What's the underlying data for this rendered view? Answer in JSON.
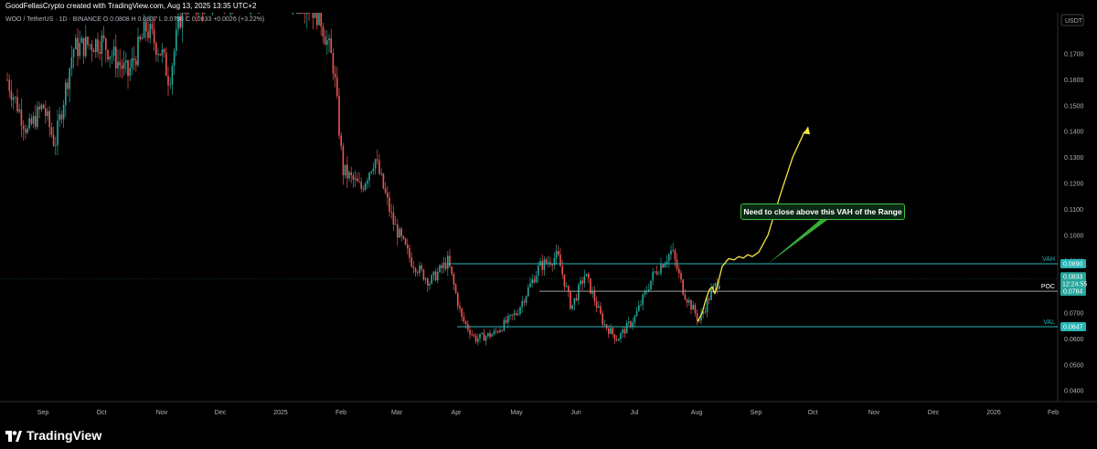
{
  "credit": "GoodFellasCrypto created with TradingView.com, Aug 13, 2025 13:35 UTC+2",
  "legend": "WOO / TetherUS · 1D · BINANCE  O 0.0808  H 0.0837  L 0.0798  C 0.0833  +0.0026 (+3.22%)",
  "currency_badge": "USDT",
  "brand": "TradingView",
  "annotation": "Need to close above this VAH of the Range",
  "colors": {
    "up": "#26a69a",
    "down": "#ef5350",
    "level": "#27b5b5",
    "path": "#f5e642",
    "note_border": "#3fbf3f"
  },
  "chart_data": {
    "type": "candlestick",
    "symbol": "WOO / TetherUS",
    "timeframe": "1D",
    "exchange": "BINANCE",
    "y_ticks": [
      "0.1700",
      "0.1600",
      "0.1500",
      "0.1400",
      "0.1300",
      "0.1200",
      "0.1100",
      "0.1000",
      "0.0900",
      "0.0800",
      "0.0700",
      "0.0600",
      "0.0500",
      "0.0400"
    ],
    "x_ticks": [
      "Sep",
      "Oct",
      "Nov",
      "Dec",
      "2025",
      "Feb",
      "Mar",
      "Apr",
      "May",
      "Jun",
      "Jul",
      "Aug",
      "Sep",
      "Oct",
      "Nov",
      "Dec",
      "2026",
      "Feb"
    ],
    "levels": [
      {
        "label": "VAH",
        "value": 0.089,
        "tag": "0.0890"
      },
      {
        "label": "POC",
        "value": 0.0784,
        "tag": "0.0784"
      },
      {
        "label": "VAL",
        "value": 0.0647,
        "tag": "0.0647"
      }
    ],
    "last_price": {
      "value": 0.0833,
      "tag": "0.0833",
      "countdown": "12:24:55"
    },
    "price_path": [
      0.0667,
      0.07,
      0.075,
      0.079,
      0.08,
      0.0775,
      0.081,
      0.088,
      0.091,
      0.0905,
      0.0918,
      0.0912,
      0.0925,
      0.0918,
      0.0935,
      0.1,
      0.115,
      0.13,
      0.14
    ],
    "price_path_text": "Projected path (hand-drawn yellow curve) rising from 0.0667 to 0.1400",
    "series_anchors": [
      [
        "Aug",
        0.16
      ],
      [
        "Sep",
        0.145
      ],
      [
        "Oct",
        0.175
      ],
      [
        "Nov",
        0.17
      ],
      [
        "Dec",
        0.185
      ],
      [
        "2025",
        0.19
      ],
      [
        "Jan-mid",
        0.185
      ],
      [
        "Feb",
        0.125
      ],
      [
        "Mar",
        0.09
      ],
      [
        "Mar-end",
        0.085
      ],
      [
        "Apr",
        0.062
      ],
      [
        "Apr-mid",
        0.058
      ],
      [
        "May",
        0.068
      ],
      [
        "May-mid",
        0.09
      ],
      [
        "Jun",
        0.075
      ],
      [
        "Jun-mid",
        0.062
      ],
      [
        "Jul",
        0.068
      ],
      [
        "Jul-end",
        0.094
      ],
      [
        "Aug",
        0.068
      ],
      [
        "Aug-13",
        0.0833
      ]
    ]
  }
}
